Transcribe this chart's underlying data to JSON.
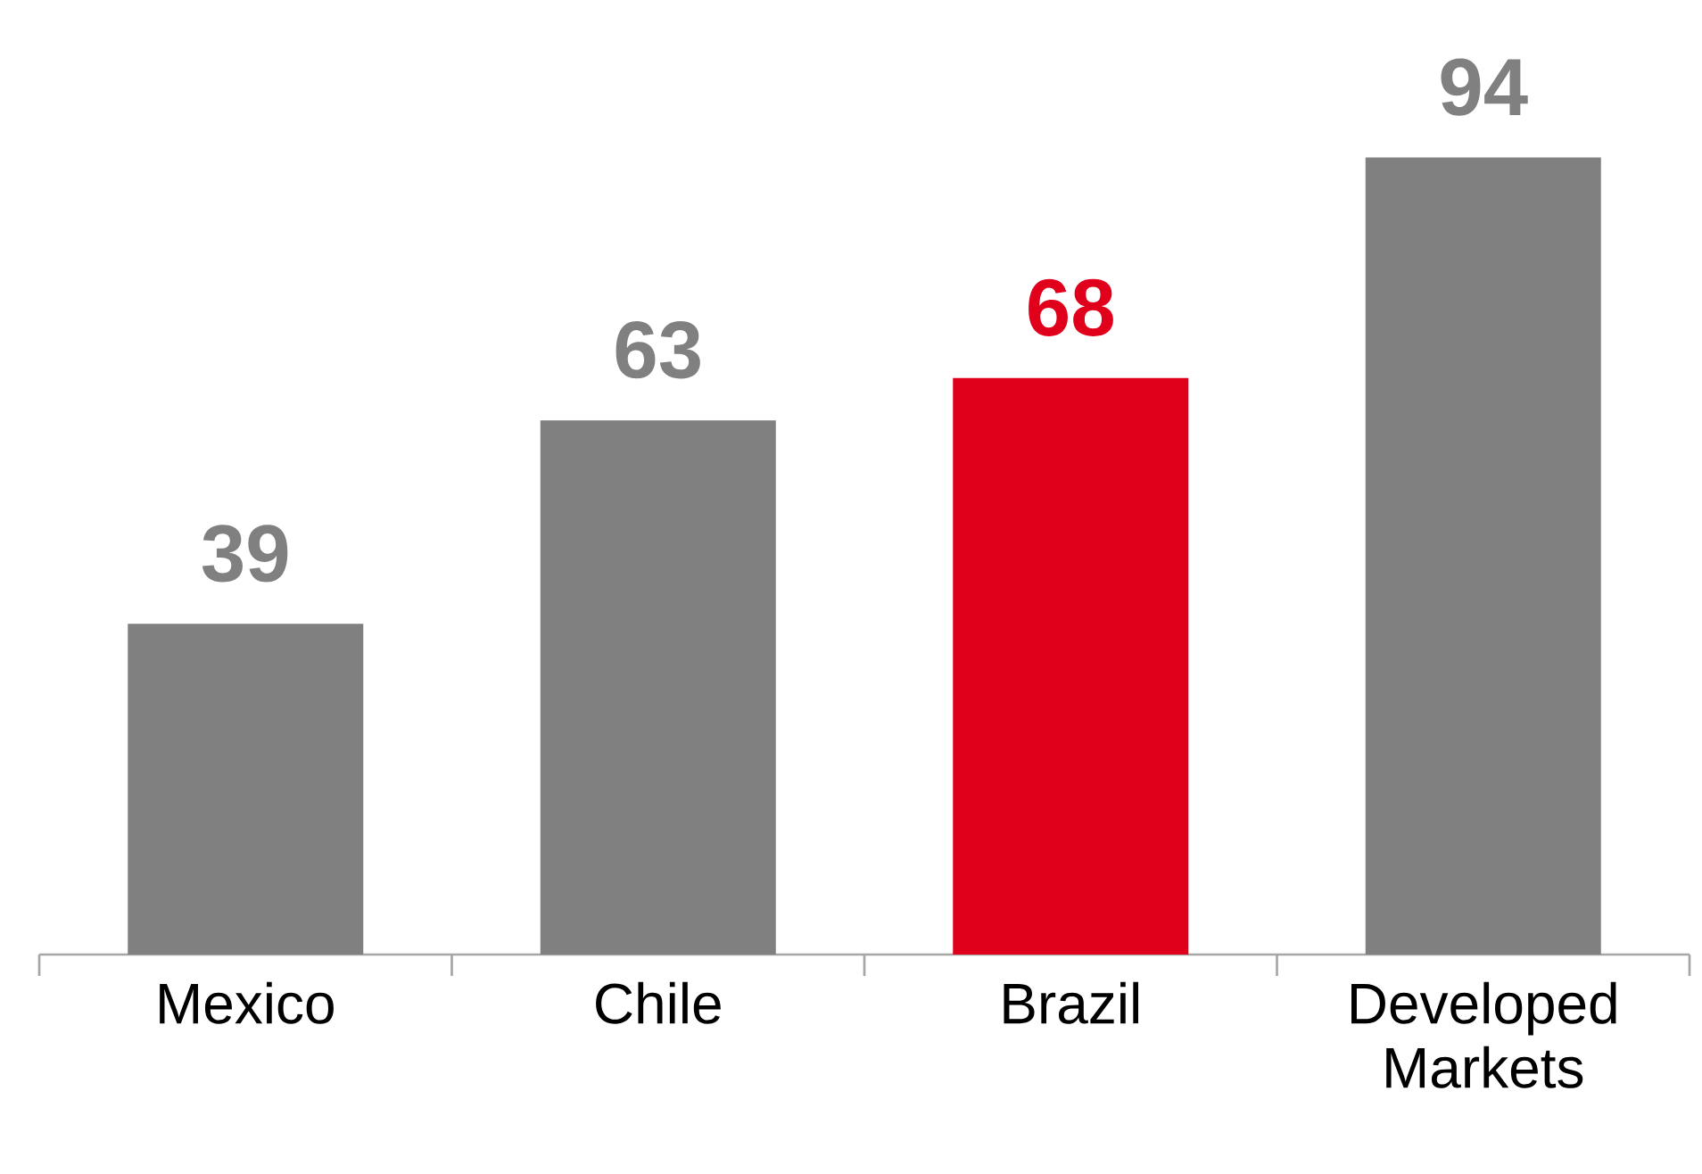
{
  "chart_data": {
    "type": "bar",
    "categories": [
      "Mexico",
      "Chile",
      "Brazil",
      "Developed Markets"
    ],
    "values": [
      39,
      63,
      68,
      94
    ],
    "colors": [
      "#808080",
      "#808080",
      "#e0001b",
      "#808080"
    ],
    "tick_labels": "x",
    "data_labels": true
  }
}
